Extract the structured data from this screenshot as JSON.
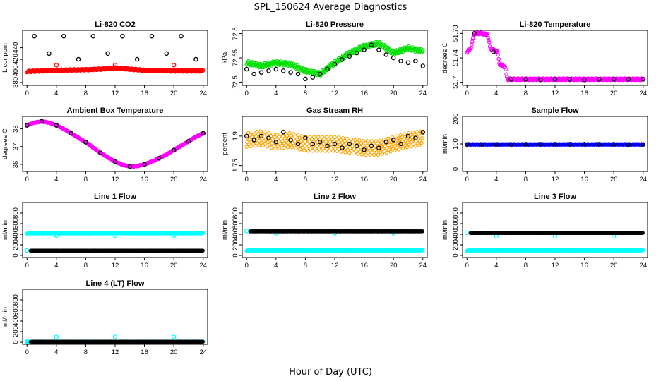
{
  "figure": {
    "title": "SPL_150624  Average Diagnostics",
    "xlabel": "Hour of Day (UTC)"
  },
  "colors": {
    "black": "#000000",
    "red": "#ff0000",
    "green": "#00e000",
    "magenta": "#ff00ff",
    "orange": "#ffa500",
    "cyan": "#00ffff",
    "blue": "#0000ff"
  },
  "chart_data": [
    {
      "type": "scatter",
      "title": "Li-820 CO2",
      "ylabel": "Licor ppm",
      "xlim": [
        -0.6,
        24.6
      ],
      "ylim": [
        375,
        470
      ],
      "xticks": [
        0,
        4,
        8,
        12,
        16,
        20,
        24
      ],
      "yticks": [
        380,
        400,
        420,
        440
      ],
      "series": [
        {
          "color": "red",
          "kind": "band",
          "x": [
            0,
            4,
            8,
            10,
            12,
            14,
            16,
            20,
            24
          ],
          "y": [
            399,
            401,
            402,
            403,
            405,
            403,
            401,
            400,
            400
          ],
          "spread": 1.5
        },
        {
          "color": "black",
          "kind": "points",
          "x": [
            1,
            3,
            5,
            7,
            9,
            11,
            13,
            15,
            17,
            19,
            21,
            23
          ],
          "y": [
            460,
            430,
            460,
            420,
            460,
            430,
            460,
            420,
            460,
            430,
            460,
            420
          ]
        },
        {
          "color": "red",
          "kind": "points",
          "x": [
            4,
            12,
            20
          ],
          "y": [
            410,
            410,
            410
          ]
        }
      ]
    },
    {
      "type": "scatter",
      "title": "Li-820 Pressure",
      "ylabel": "kPa",
      "xlim": [
        -0.6,
        24.6
      ],
      "ylim": [
        72.48,
        72.82
      ],
      "xticks": [
        0,
        4,
        8,
        12,
        16,
        20,
        24
      ],
      "yticks": [
        72.5,
        72.65,
        72.8
      ],
      "series": [
        {
          "color": "green",
          "kind": "band",
          "x": [
            0,
            2,
            4,
            6,
            8,
            10,
            12,
            14,
            16,
            18,
            20,
            22,
            24
          ],
          "y": [
            72.62,
            72.6,
            72.62,
            72.61,
            72.57,
            72.55,
            72.62,
            72.68,
            72.72,
            72.74,
            72.68,
            72.71,
            72.69
          ],
          "spread": 0.012
        },
        {
          "color": "black",
          "kind": "points",
          "x": [
            0,
            1,
            2,
            3,
            4,
            5,
            6,
            7,
            8,
            9,
            10,
            11,
            12,
            13,
            14,
            15,
            16,
            17,
            18,
            19,
            20,
            21,
            22,
            23,
            24
          ],
          "y": [
            72.58,
            72.55,
            72.56,
            72.57,
            72.58,
            72.57,
            72.56,
            72.55,
            72.52,
            72.53,
            72.55,
            72.58,
            72.61,
            72.64,
            72.66,
            72.68,
            72.7,
            72.73,
            72.7,
            72.67,
            72.65,
            72.63,
            72.62,
            72.63,
            72.6
          ]
        }
      ]
    },
    {
      "type": "scatter",
      "title": "Li-820 Temperature",
      "ylabel": "degrees C",
      "xlim": [
        -0.6,
        24.6
      ],
      "ylim": [
        51.695,
        51.785
      ],
      "xticks": [
        0,
        4,
        8,
        12,
        16,
        20,
        24
      ],
      "yticks": [
        51.7,
        51.74,
        51.78
      ],
      "series": [
        {
          "color": "magenta",
          "kind": "band",
          "x": [
            0,
            0.5,
            1,
            2,
            2.8,
            3.2,
            4.2,
            4.4,
            5.2,
            5.5,
            6,
            10,
            14,
            18,
            22,
            24
          ],
          "y": [
            51.75,
            51.755,
            51.78,
            51.78,
            51.778,
            51.755,
            51.75,
            51.73,
            51.725,
            51.705,
            51.705,
            51.705,
            51.705,
            51.705,
            51.705,
            51.705
          ],
          "spread": 0.0015
        },
        {
          "color": "black",
          "kind": "points",
          "x": [
            1,
            3.6,
            6,
            8,
            10,
            12,
            14,
            16,
            18,
            20,
            22,
            24
          ],
          "y": [
            51.78,
            51.75,
            51.705,
            51.705,
            51.704,
            51.705,
            51.705,
            51.704,
            51.705,
            51.705,
            51.705,
            51.705
          ]
        }
      ]
    },
    {
      "type": "scatter",
      "title": "Ambient Box Temperature",
      "ylabel": "degrees C",
      "xlim": [
        -0.6,
        24.6
      ],
      "ylim": [
        35.6,
        38.7
      ],
      "xticks": [
        0,
        4,
        8,
        12,
        16,
        20,
        24
      ],
      "yticks": [
        36.0,
        37.0,
        38.0
      ],
      "series": [
        {
          "color": "magenta",
          "kind": "band",
          "x": [
            0,
            1,
            2,
            3,
            4,
            5,
            6,
            7,
            8,
            9,
            10,
            11,
            12,
            13,
            14,
            15,
            16,
            17,
            18,
            19,
            20,
            21,
            22,
            23,
            24
          ],
          "y": [
            38.2,
            38.35,
            38.42,
            38.35,
            38.2,
            38.0,
            37.75,
            37.5,
            37.25,
            36.95,
            36.65,
            36.4,
            36.15,
            35.98,
            35.88,
            35.9,
            36.0,
            36.15,
            36.35,
            36.55,
            36.8,
            37.05,
            37.3,
            37.55,
            37.75
          ],
          "spread": 0.025
        },
        {
          "color": "black",
          "kind": "points",
          "x": [
            0,
            2,
            4,
            6,
            8,
            10,
            12,
            14,
            16,
            18,
            20,
            22,
            24
          ],
          "y": [
            38.2,
            38.42,
            38.2,
            37.75,
            37.25,
            36.65,
            36.15,
            35.88,
            36.0,
            36.35,
            36.8,
            37.3,
            37.75
          ]
        }
      ]
    },
    {
      "type": "scatter",
      "title": "Gas Stream RH",
      "ylabel": "percent",
      "xlim": [
        -0.6,
        24.6
      ],
      "ylim": [
        1.72,
        2.0
      ],
      "xticks": [
        0,
        4,
        8,
        12,
        16,
        20,
        24
      ],
      "yticks": [
        1.75,
        1.9
      ],
      "series": [
        {
          "color": "orange",
          "kind": "band",
          "x": [
            0,
            2,
            4,
            6,
            8,
            10,
            12,
            14,
            16,
            18,
            20,
            22,
            24
          ],
          "y": [
            1.88,
            1.89,
            1.87,
            1.88,
            1.86,
            1.86,
            1.86,
            1.85,
            1.84,
            1.84,
            1.86,
            1.88,
            1.89
          ],
          "spread": 0.035
        },
        {
          "color": "black",
          "kind": "points",
          "x": [
            0,
            1,
            2,
            3,
            4,
            5,
            6,
            7,
            8,
            9,
            10,
            11,
            12,
            13,
            14,
            15,
            16,
            17,
            18,
            19,
            20,
            21,
            22,
            23,
            24
          ],
          "y": [
            1.9,
            1.88,
            1.9,
            1.89,
            1.87,
            1.92,
            1.88,
            1.86,
            1.89,
            1.86,
            1.87,
            1.85,
            1.86,
            1.84,
            1.86,
            1.85,
            1.83,
            1.85,
            1.84,
            1.87,
            1.88,
            1.86,
            1.9,
            1.89,
            1.92
          ]
        }
      ]
    },
    {
      "type": "scatter",
      "title": "Sample Flow",
      "ylabel": "ml/min",
      "xlim": [
        -0.6,
        24.6
      ],
      "ylim": [
        -10,
        210
      ],
      "xticks": [
        0,
        4,
        8,
        12,
        16,
        20,
        24
      ],
      "yticks": [
        0,
        100,
        200
      ],
      "series": [
        {
          "color": "blue",
          "kind": "band",
          "x": [
            0,
            24
          ],
          "y": [
            98,
            98
          ],
          "spread": 1.5
        },
        {
          "color": "black",
          "kind": "points",
          "x": [
            0,
            2,
            4,
            6,
            8,
            10,
            12,
            14,
            16,
            18,
            20,
            22,
            24
          ],
          "y": [
            98,
            98,
            98,
            98,
            99,
            99,
            99,
            99,
            99,
            99,
            99,
            98,
            98
          ]
        }
      ]
    },
    {
      "type": "scatter",
      "title": "Line 1 Flow",
      "ylabel": "ml/min",
      "xlim": [
        -0.6,
        24.6
      ],
      "ylim": [
        -40,
        1000
      ],
      "xticks": [
        0,
        4,
        8,
        12,
        16,
        20,
        24
      ],
      "yticks": [
        0,
        200,
        400,
        600,
        800
      ],
      "series": [
        {
          "color": "cyan",
          "kind": "band",
          "x": [
            0,
            24
          ],
          "y": [
            420,
            420
          ],
          "spread": 8
        },
        {
          "color": "cyan",
          "kind": "points",
          "x": [
            0,
            4,
            12,
            20
          ],
          "y": [
            95,
            375,
            375,
            375
          ]
        },
        {
          "color": "black",
          "kind": "band",
          "x": [
            0.5,
            24
          ],
          "y": [
            90,
            90
          ],
          "spread": 2
        }
      ]
    },
    {
      "type": "scatter",
      "title": "Line 2 Flow",
      "ylabel": "ml/min",
      "xlim": [
        -0.6,
        24.6
      ],
      "ylim": [
        -40,
        1000
      ],
      "xticks": [
        0,
        4,
        8,
        12,
        16,
        20,
        24
      ],
      "yticks": [
        0,
        200,
        400,
        600,
        800
      ],
      "series": [
        {
          "color": "cyan",
          "kind": "band",
          "x": [
            0,
            24
          ],
          "y": [
            95,
            95
          ],
          "spread": 8
        },
        {
          "color": "cyan",
          "kind": "points",
          "x": [
            0,
            4,
            12,
            20
          ],
          "y": [
            460,
            420,
            420,
            420
          ]
        },
        {
          "color": "black",
          "kind": "band",
          "x": [
            0.5,
            24
          ],
          "y": [
            455,
            455
          ],
          "spread": 2
        }
      ]
    },
    {
      "type": "scatter",
      "title": "Line 3 Flow",
      "ylabel": "ml/min",
      "xlim": [
        -0.6,
        24.6
      ],
      "ylim": [
        -40,
        1000
      ],
      "xticks": [
        0,
        4,
        8,
        12,
        16,
        20,
        24
      ],
      "yticks": [
        0,
        200,
        400,
        600,
        800
      ],
      "series": [
        {
          "color": "cyan",
          "kind": "band",
          "x": [
            0,
            24
          ],
          "y": [
            95,
            95
          ],
          "spread": 8
        },
        {
          "color": "cyan",
          "kind": "points",
          "x": [
            0,
            4,
            12,
            20
          ],
          "y": [
            430,
            360,
            360,
            360
          ]
        },
        {
          "color": "black",
          "kind": "band",
          "x": [
            0.5,
            24
          ],
          "y": [
            425,
            425
          ],
          "spread": 2
        }
      ]
    },
    {
      "type": "scatter",
      "title": "Line 4 (LT) Flow",
      "ylabel": "ml/min",
      "xlim": [
        -0.6,
        24.6
      ],
      "ylim": [
        -40,
        1000
      ],
      "xticks": [
        0,
        4,
        8,
        12,
        16,
        20,
        24
      ],
      "yticks": [
        0,
        200,
        400,
        600,
        800
      ],
      "series": [
        {
          "color": "cyan",
          "kind": "band",
          "x": [
            0,
            24
          ],
          "y": [
            10,
            10
          ],
          "spread": 4
        },
        {
          "color": "cyan",
          "kind": "points",
          "x": [
            0,
            4,
            12,
            20
          ],
          "y": [
            10,
            100,
            100,
            100
          ]
        },
        {
          "color": "black",
          "kind": "band",
          "x": [
            0.5,
            24
          ],
          "y": [
            8,
            8
          ],
          "spread": 2
        }
      ]
    }
  ]
}
